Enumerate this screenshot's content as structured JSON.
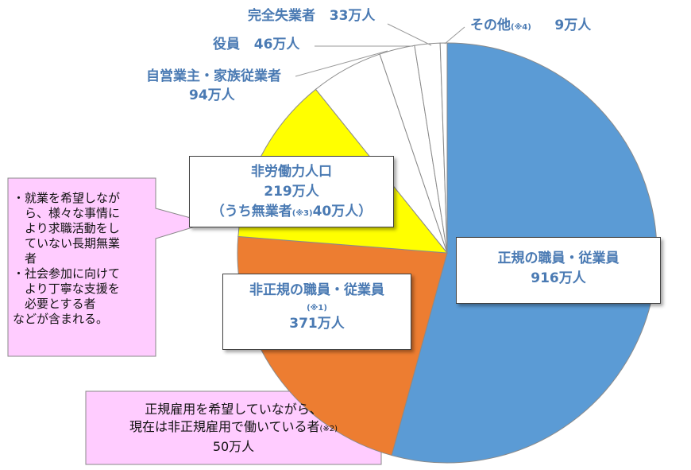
{
  "chart_data": {
    "type": "pie",
    "slices": [
      {
        "name": "正規の職員・従業員",
        "value": 916,
        "value_label": "916万人",
        "color": "#5b9bd5"
      },
      {
        "name": "非正規の職員・従業員",
        "note": "(※1)",
        "value": 371,
        "value_label": "371万人",
        "color": "#ed7d31"
      },
      {
        "name": "非労働力人口",
        "value": 219,
        "value_label": "219万人",
        "sub_label": "（うち無業者",
        "sub_note": "(※3)",
        "sub_value": "40万人）",
        "color": "#ffff00"
      },
      {
        "name": "自営業主・家族従業者",
        "value": 94,
        "value_label": "94万人",
        "color": "#ffffff"
      },
      {
        "name": "役員",
        "value": 46,
        "value_label": "46万人",
        "color": "#ffffff"
      },
      {
        "name": "完全失業者",
        "value": 33,
        "value_label": "33万人",
        "color": "#ffffff"
      },
      {
        "name": "その他",
        "note": "(※4)",
        "value": 9,
        "value_label": "9万人",
        "color": "#ffffff"
      }
    ],
    "start": "top",
    "direction": "clockwise",
    "title": ""
  },
  "callouts": {
    "left": {
      "lines": [
        "・就業を希望しなが",
        "　ら、様々な事情に",
        "　より求職活動をし",
        "　ていない長期無業",
        "　者",
        "・社会参加に向けて",
        "　より丁寧な支援を",
        "　必要とする者",
        "などが含まれる。"
      ],
      "color": "#ffccff"
    },
    "bottom": {
      "line1": "正規雇用を希望していながら、",
      "line2": "現在は非正規雇用で働いている者",
      "note": "(※2)",
      "line3": "50万人",
      "color": "#ffccff"
    }
  }
}
